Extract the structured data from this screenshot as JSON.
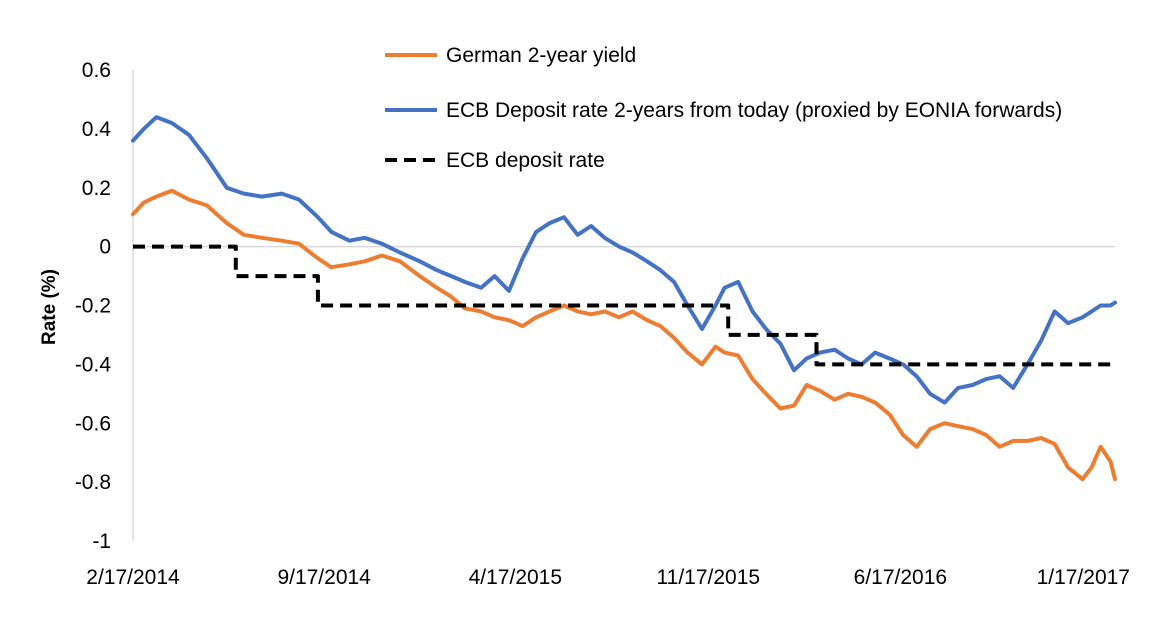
{
  "chart_data": {
    "type": "line",
    "title": "",
    "xlabel": "",
    "ylabel": "Rate (%)",
    "ylim": [
      -1,
      0.6
    ],
    "yticks": [
      0.6,
      0.4,
      0.2,
      0,
      -0.2,
      -0.4,
      -0.6,
      -0.8,
      -1
    ],
    "ytick_labels": [
      "0.6",
      "0.4",
      "0.2",
      "0",
      "-0.2",
      "-0.4",
      "-0.6",
      "-0.8",
      "-1"
    ],
    "xlim": [
      "2014-02-17",
      "2017-02-10"
    ],
    "xticks": [
      "2014-02-17",
      "2014-09-17",
      "2015-04-17",
      "2015-11-17",
      "2016-06-17",
      "2017-01-17"
    ],
    "xtick_labels": [
      "2/17/2014",
      "9/17/2014",
      "4/17/2015",
      "11/17/2015",
      "6/17/2016",
      "1/17/2017"
    ],
    "grid": false,
    "legend_position": "top",
    "series": [
      {
        "name": "German 2-year yield",
        "color": "#ED7D31",
        "style": "solid",
        "x": [
          "2014-02-17",
          "2014-03-01",
          "2014-03-15",
          "2014-04-01",
          "2014-04-20",
          "2014-05-10",
          "2014-06-01",
          "2014-06-20",
          "2014-07-10",
          "2014-08-01",
          "2014-08-20",
          "2014-09-10",
          "2014-09-25",
          "2014-10-15",
          "2014-11-01",
          "2014-11-20",
          "2014-12-10",
          "2015-01-01",
          "2015-01-20",
          "2015-02-05",
          "2015-02-20",
          "2015-03-10",
          "2015-03-25",
          "2015-04-10",
          "2015-04-25",
          "2015-05-10",
          "2015-05-25",
          "2015-06-10",
          "2015-06-25",
          "2015-07-10",
          "2015-07-25",
          "2015-08-10",
          "2015-08-25",
          "2015-09-10",
          "2015-09-25",
          "2015-10-10",
          "2015-10-25",
          "2015-11-10",
          "2015-11-25",
          "2015-12-05",
          "2015-12-20",
          "2016-01-05",
          "2016-01-20",
          "2016-02-05",
          "2016-02-20",
          "2016-03-05",
          "2016-03-20",
          "2016-04-05",
          "2016-04-20",
          "2016-05-05",
          "2016-05-20",
          "2016-06-05",
          "2016-06-20",
          "2016-07-05",
          "2016-07-20",
          "2016-08-05",
          "2016-08-20",
          "2016-09-05",
          "2016-09-20",
          "2016-10-05",
          "2016-10-20",
          "2016-11-05",
          "2016-11-20",
          "2016-12-05",
          "2016-12-20",
          "2017-01-05",
          "2017-01-15",
          "2017-01-25",
          "2017-02-05",
          "2017-02-10"
        ],
        "values": [
          0.11,
          0.15,
          0.17,
          0.19,
          0.16,
          0.14,
          0.08,
          0.04,
          0.03,
          0.02,
          0.01,
          -0.04,
          -0.07,
          -0.06,
          -0.05,
          -0.03,
          -0.05,
          -0.1,
          -0.14,
          -0.17,
          -0.21,
          -0.22,
          -0.24,
          -0.25,
          -0.27,
          -0.24,
          -0.22,
          -0.2,
          -0.22,
          -0.23,
          -0.22,
          -0.24,
          -0.22,
          -0.25,
          -0.27,
          -0.31,
          -0.36,
          -0.4,
          -0.34,
          -0.36,
          -0.37,
          -0.45,
          -0.5,
          -0.55,
          -0.54,
          -0.47,
          -0.49,
          -0.52,
          -0.5,
          -0.51,
          -0.53,
          -0.57,
          -0.64,
          -0.68,
          -0.62,
          -0.6,
          -0.61,
          -0.62,
          -0.64,
          -0.68,
          -0.66,
          -0.66,
          -0.65,
          -0.67,
          -0.75,
          -0.79,
          -0.75,
          -0.68,
          -0.73,
          -0.79
        ]
      },
      {
        "name": "ECB Deposit rate 2-years from today (proxied by EONIA forwards)",
        "color": "#4472C4",
        "style": "solid",
        "x": [
          "2014-02-17",
          "2014-03-01",
          "2014-03-15",
          "2014-04-01",
          "2014-04-20",
          "2014-05-10",
          "2014-06-01",
          "2014-06-20",
          "2014-07-10",
          "2014-08-01",
          "2014-08-20",
          "2014-09-10",
          "2014-09-25",
          "2014-10-15",
          "2014-11-01",
          "2014-11-20",
          "2014-12-10",
          "2015-01-01",
          "2015-01-20",
          "2015-02-05",
          "2015-02-20",
          "2015-03-10",
          "2015-03-25",
          "2015-04-10",
          "2015-04-25",
          "2015-05-10",
          "2015-05-25",
          "2015-06-10",
          "2015-06-25",
          "2015-07-10",
          "2015-07-25",
          "2015-08-10",
          "2015-08-25",
          "2015-09-10",
          "2015-09-25",
          "2015-10-10",
          "2015-10-25",
          "2015-11-10",
          "2015-11-25",
          "2015-12-05",
          "2015-12-20",
          "2016-01-05",
          "2016-01-20",
          "2016-02-05",
          "2016-02-20",
          "2016-03-05",
          "2016-03-20",
          "2016-04-05",
          "2016-04-20",
          "2016-05-05",
          "2016-05-20",
          "2016-06-05",
          "2016-06-20",
          "2016-07-05",
          "2016-07-20",
          "2016-08-05",
          "2016-08-20",
          "2016-09-05",
          "2016-09-20",
          "2016-10-05",
          "2016-10-20",
          "2016-11-05",
          "2016-11-20",
          "2016-12-05",
          "2016-12-20",
          "2017-01-05",
          "2017-01-15",
          "2017-01-25",
          "2017-02-05",
          "2017-02-10"
        ],
        "values": [
          0.36,
          0.4,
          0.44,
          0.42,
          0.38,
          0.3,
          0.2,
          0.18,
          0.17,
          0.18,
          0.16,
          0.1,
          0.05,
          0.02,
          0.03,
          0.01,
          -0.02,
          -0.05,
          -0.08,
          -0.1,
          -0.12,
          -0.14,
          -0.1,
          -0.15,
          -0.04,
          0.05,
          0.08,
          0.1,
          0.04,
          0.07,
          0.03,
          0.0,
          -0.02,
          -0.05,
          -0.08,
          -0.12,
          -0.2,
          -0.28,
          -0.2,
          -0.14,
          -0.12,
          -0.22,
          -0.28,
          -0.33,
          -0.42,
          -0.38,
          -0.36,
          -0.35,
          -0.38,
          -0.4,
          -0.36,
          -0.38,
          -0.4,
          -0.44,
          -0.5,
          -0.53,
          -0.48,
          -0.47,
          -0.45,
          -0.44,
          -0.48,
          -0.4,
          -0.32,
          -0.22,
          -0.26,
          -0.24,
          -0.22,
          -0.2,
          -0.2,
          -0.19
        ]
      },
      {
        "name": "ECB deposit rate",
        "color": "#000000",
        "style": "dashed",
        "x": [
          "2014-02-17",
          "2014-06-11",
          "2014-06-11",
          "2014-09-10",
          "2014-09-10",
          "2015-12-09",
          "2015-12-09",
          "2016-03-16",
          "2016-03-16",
          "2017-02-10"
        ],
        "values": [
          0,
          0,
          -0.1,
          -0.1,
          -0.2,
          -0.2,
          -0.3,
          -0.3,
          -0.4,
          -0.4
        ]
      }
    ]
  }
}
